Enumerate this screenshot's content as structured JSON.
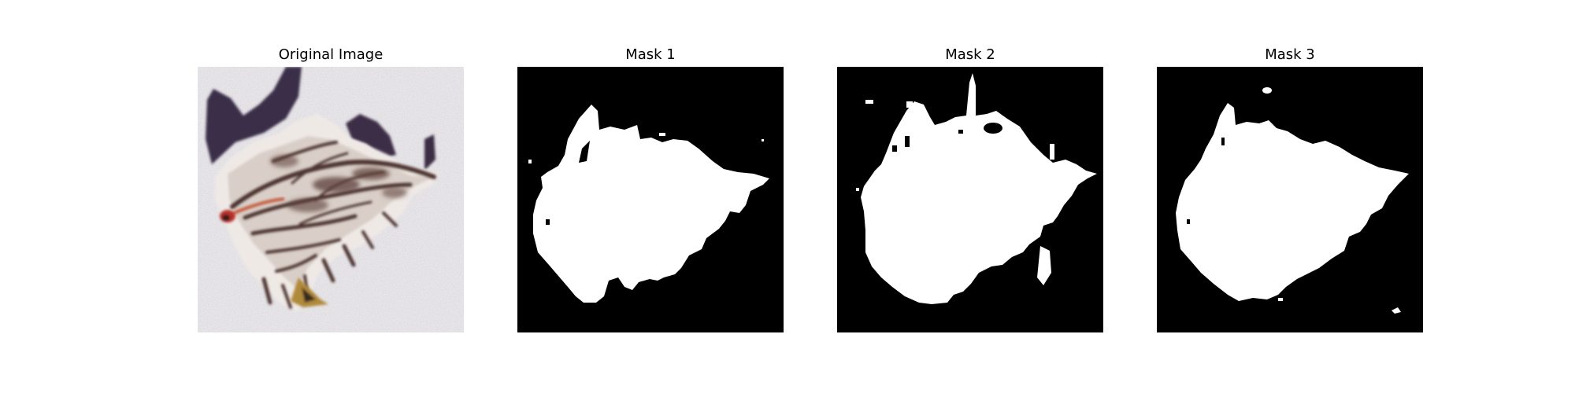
{
  "figure": {
    "panels": [
      {
        "title": "Original Image",
        "kind": "photo"
      },
      {
        "title": "Mask 1",
        "kind": "mask"
      },
      {
        "title": "Mask 2",
        "kind": "mask"
      },
      {
        "title": "Mask 3",
        "kind": "mask"
      }
    ]
  },
  "colors": {
    "background": "#ffffff",
    "mask_background": "#000000",
    "mask_foreground": "#ffffff",
    "photo_background": "#e7e5e8",
    "leaf_shadow": "#3b2f48",
    "leaf_dark": "#5a3a35",
    "leaf_accent": "#b8332a",
    "leaf_yellow": "#b08a3a"
  }
}
